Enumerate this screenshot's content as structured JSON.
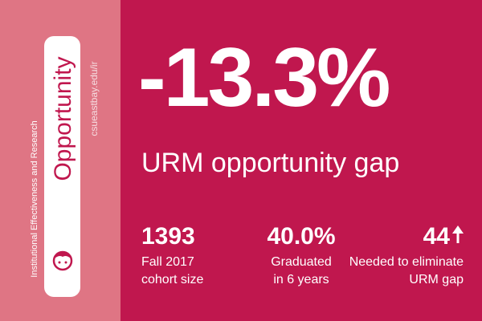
{
  "sidebar": {
    "title": "Opportunity",
    "org": "Institutional Effectiveness and Research",
    "url": "csueastbay.edu/ir"
  },
  "headline": {
    "value": "-13.3%",
    "label": "URM opportunity gap"
  },
  "stats": [
    {
      "value": "1393",
      "label": [
        "Fall 2017",
        "cohort size"
      ]
    },
    {
      "value": "40.0%",
      "label": [
        "Graduated",
        "in 6 years"
      ]
    },
    {
      "value": "44",
      "label": [
        "Needed to eliminate",
        "URM gap"
      ]
    }
  ]
}
